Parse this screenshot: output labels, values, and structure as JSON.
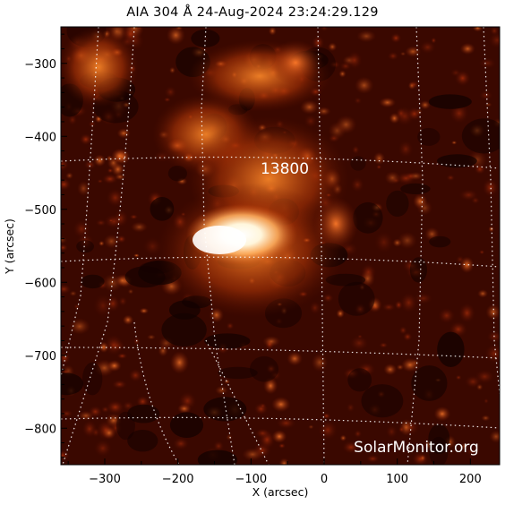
{
  "title": "AIA 304 Å 24-Aug-2024 23:24:29.129",
  "active_region": "13800",
  "watermark": "SolarMonitor.org",
  "colors": {
    "background": "#ffffff",
    "frame": "#000000",
    "grid": "#ffffff"
  },
  "chart_data": {
    "type": "image",
    "xlabel": "X (arcsec)",
    "ylabel": "Y (arcsec)",
    "xlim": [
      -360,
      240
    ],
    "ylim": [
      -850,
      -250
    ],
    "x_ticks": [
      -300,
      -200,
      -100,
      0,
      100,
      200
    ],
    "y_ticks": [
      -300,
      -400,
      -500,
      -600,
      -700,
      -800
    ],
    "grid": true
  }
}
